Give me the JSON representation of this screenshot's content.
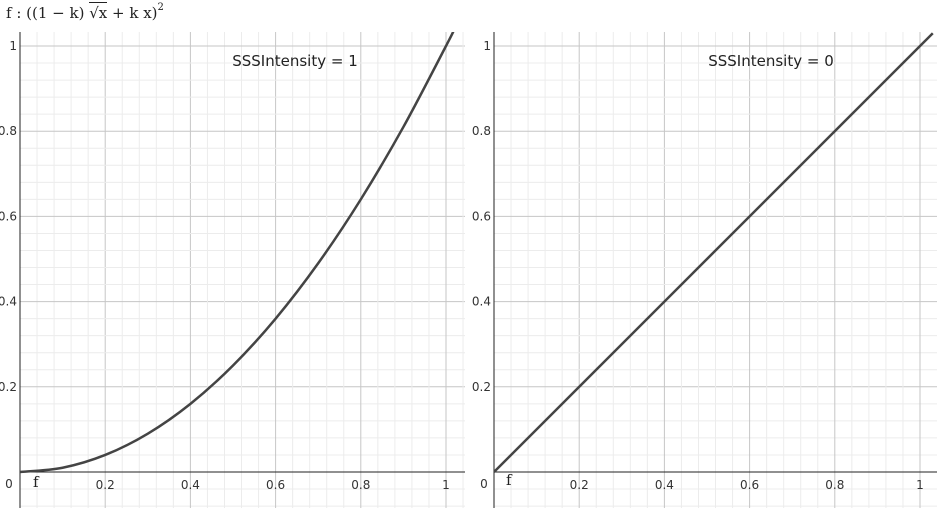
{
  "formula": {
    "prefix": "f : ((1 − k) ",
    "radicand": "x",
    "middle": " + k x)",
    "exponent": "2"
  },
  "chart_data": [
    {
      "type": "line",
      "annotation": "SSSIntensity = 1",
      "function_label": "f",
      "xlim": [
        0,
        1.05
      ],
      "ylim": [
        0,
        1.04
      ],
      "grid": true,
      "x_ticks": [
        "0.2",
        "0.4",
        "0.6",
        "0.8",
        "1"
      ],
      "y_ticks": [
        "0.2",
        "0.4",
        "0.6",
        "0.8",
        "1"
      ],
      "origin_label": "0",
      "series": [
        {
          "color": "#444444",
          "x": [
            0,
            0.1,
            0.2,
            0.3,
            0.4,
            0.5,
            0.6,
            0.7,
            0.8,
            0.9,
            1.0,
            1.02
          ],
          "y": [
            0,
            0.01,
            0.04,
            0.09,
            0.16,
            0.25,
            0.36,
            0.49,
            0.64,
            0.81,
            1.0,
            1.04
          ]
        }
      ]
    },
    {
      "type": "line",
      "annotation": "SSSIntensity = 0",
      "function_label": "f",
      "xlim": [
        0,
        1.04
      ],
      "ylim": [
        0,
        1.04
      ],
      "grid": true,
      "x_ticks": [
        "0.2",
        "0.4",
        "0.6",
        "0.8",
        "1"
      ],
      "y_ticks": [
        "0.2",
        "0.4",
        "0.6",
        "0.8",
        "1"
      ],
      "origin_label": "0",
      "series": [
        {
          "color": "#444444",
          "x": [
            0,
            1.03
          ],
          "y": [
            0,
            1.03
          ]
        }
      ]
    }
  ]
}
